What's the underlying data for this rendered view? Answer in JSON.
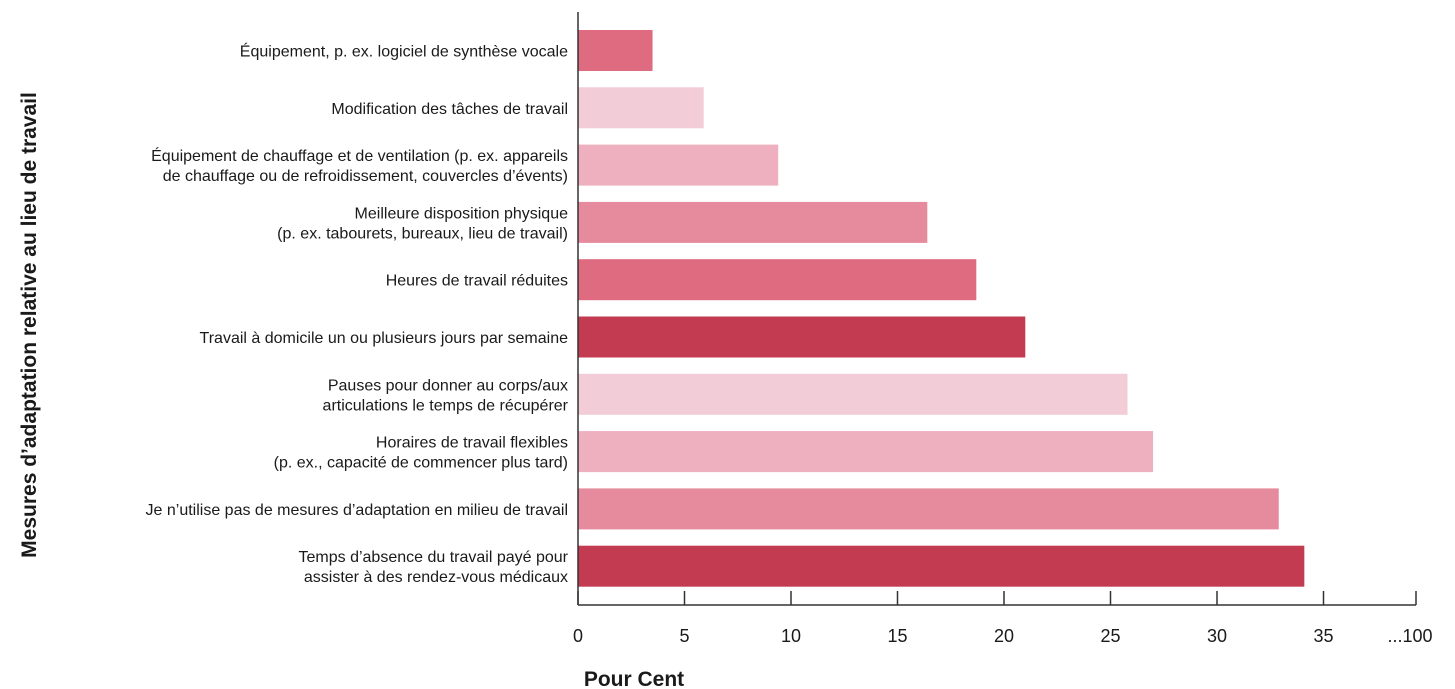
{
  "chart_data": {
    "type": "bar",
    "orientation": "horizontal",
    "xlabel": "Pour Cent",
    "ylabel": "Mesures d’adaptation relative au lieu de travail",
    "xlim": [
      0,
      39
    ],
    "x_ticks": [
      "0",
      "5",
      "10",
      "15",
      "20",
      "25",
      "30",
      "35",
      "...100"
    ],
    "categories": [
      [
        "Équipement, p. ex. logiciel de synthèse vocale"
      ],
      [
        "Modification des tâches de travail"
      ],
      [
        "Équipement de chauffage et de ventilation (p. ex. appareils",
        "de chauffage ou de refroidissement, couvercles d’évents)"
      ],
      [
        "Meilleure disposition physique",
        "(p. ex. tabourets, bureaux, lieu de travail)"
      ],
      [
        "Heures de travail réduites"
      ],
      [
        "Travail à domicile un ou plusieurs jours par semaine"
      ],
      [
        "Pauses pour donner au corps/aux",
        "articulations le temps de récupérer"
      ],
      [
        "Horaires de travail flexibles",
        "(p. ex., capacité de commencer plus tard)"
      ],
      [
        "Je n’utilise pas de mesures d’adaptation en milieu de travail"
      ],
      [
        "Temps d’absence du travail payé pour",
        "assister à des rendez-vous médicaux"
      ]
    ],
    "values": [
      3.5,
      5.9,
      9.4,
      16.4,
      18.7,
      21.0,
      25.8,
      27.0,
      32.9,
      34.1
    ],
    "bar_colors": [
      "#de6b80",
      "#f2ccd6",
      "#eeafbf",
      "#e68b9d",
      "#de6b80",
      "#c23b51",
      "#f2ccd6",
      "#eeafbf",
      "#e68b9d",
      "#c23b51"
    ],
    "axis_color": "#333333",
    "grid": false
  }
}
